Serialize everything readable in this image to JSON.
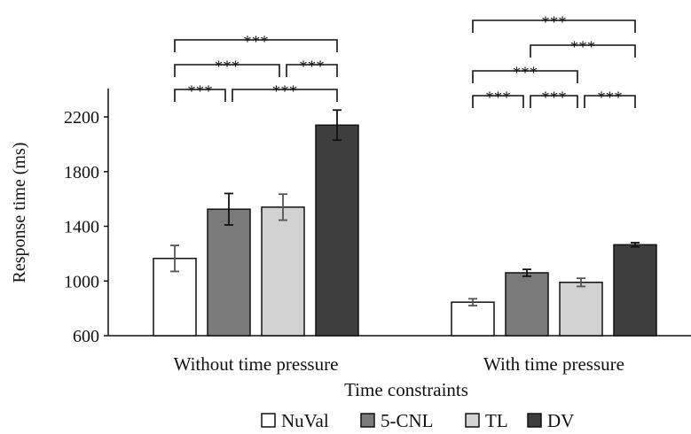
{
  "chart_data": {
    "type": "bar",
    "xlabel": "Time constraints",
    "ylabel": "Response time (ms)",
    "ylim": [
      600,
      2400
    ],
    "yticks": [
      600,
      1000,
      1400,
      1800,
      2200
    ],
    "grid": false,
    "legend_position": "bottom",
    "categories": [
      "Without time pressure",
      "With time pressure"
    ],
    "series": [
      {
        "name": "NuVal",
        "color": "#ffffff",
        "values": [
          1165,
          845
        ],
        "errors": [
          95,
          25
        ]
      },
      {
        "name": "5-CNL",
        "color": "#7a7a7a",
        "values": [
          1525,
          1060
        ],
        "errors": [
          115,
          25
        ]
      },
      {
        "name": "TL",
        "color": "#d2d2d2",
        "values": [
          1540,
          990
        ],
        "errors": [
          95,
          30
        ]
      },
      {
        "name": "DV",
        "color": "#3e3e3e",
        "values": [
          2140,
          1265
        ],
        "errors": [
          110,
          15
        ]
      }
    ],
    "significance": [
      {
        "group": 0,
        "from": 0,
        "to": 1,
        "label": "***"
      },
      {
        "group": 0,
        "from": 1,
        "to": 3,
        "label": "***"
      },
      {
        "group": 0,
        "from": 2,
        "to": 3,
        "label": "***"
      },
      {
        "group": 0,
        "from": 0,
        "to": 2,
        "label": "***"
      },
      {
        "group": 0,
        "from": 0,
        "to": 3,
        "label": "***"
      },
      {
        "group": 1,
        "from": 0,
        "to": 1,
        "label": "***"
      },
      {
        "group": 1,
        "from": 1,
        "to": 2,
        "label": "***"
      },
      {
        "group": 1,
        "from": 2,
        "to": 3,
        "label": "***"
      },
      {
        "group": 1,
        "from": 0,
        "to": 2,
        "label": "***"
      },
      {
        "group": 1,
        "from": 1,
        "to": 3,
        "label": "***"
      },
      {
        "group": 1,
        "from": 0,
        "to": 3,
        "label": "***"
      }
    ]
  }
}
